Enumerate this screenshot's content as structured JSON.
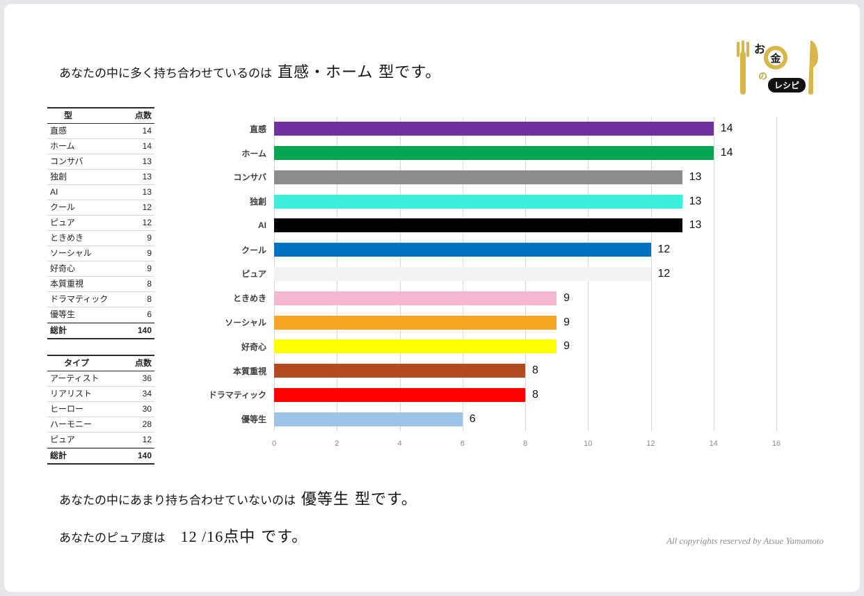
{
  "header": {
    "prefix": "あなたの中に多く持ち合わせているのは",
    "highlight": "直感・ホーム",
    "suffix": "型です。"
  },
  "logo": {
    "char_o": "お",
    "char_kin": "金",
    "char_no": "の",
    "text_recipe": "レシピ",
    "gold": "#d8b64a"
  },
  "tables": [
    {
      "headers": [
        "型",
        "点数"
      ],
      "rows": [
        [
          "直感",
          "14"
        ],
        [
          "ホーム",
          "14"
        ],
        [
          "コンサバ",
          "13"
        ],
        [
          "独創",
          "13"
        ],
        [
          "AI",
          "13"
        ],
        [
          "クール",
          "12"
        ],
        [
          "ピュア",
          "12"
        ],
        [
          "ときめき",
          "9"
        ],
        [
          "ソーシャル",
          "9"
        ],
        [
          "好奇心",
          "9"
        ],
        [
          "本質重視",
          "8"
        ],
        [
          "ドラマティック",
          "8"
        ],
        [
          "優等生",
          "6"
        ]
      ],
      "total_label": "総計",
      "total": "140"
    },
    {
      "headers": [
        "タイプ",
        "点数"
      ],
      "rows": [
        [
          "アーティスト",
          "36"
        ],
        [
          "リアリスト",
          "34"
        ],
        [
          "ヒーロー",
          "30"
        ],
        [
          "ハーモニー",
          "28"
        ],
        [
          "ピュア",
          "12"
        ]
      ],
      "total_label": "総計",
      "total": "140"
    }
  ],
  "chart_data": {
    "type": "bar",
    "orientation": "horizontal",
    "title": "",
    "categories": [
      "直感",
      "ホーム",
      "コンサバ",
      "独創",
      "AI",
      "クール",
      "ピュア",
      "ときめき",
      "ソーシャル",
      "好奇心",
      "本質重視",
      "ドラマティック",
      "優等生"
    ],
    "values": [
      14,
      14,
      13,
      13,
      13,
      12,
      12,
      9,
      9,
      9,
      8,
      8,
      6
    ],
    "colors": [
      "#7030a0",
      "#00a651",
      "#8c8c8c",
      "#3fefde",
      "#000000",
      "#0070c0",
      "#f2f2f2",
      "#f7b6d2",
      "#f5a623",
      "#ffff00",
      "#b5491f",
      "#ff0000",
      "#9dc3e6"
    ],
    "xlim": [
      0,
      16
    ],
    "xticks": [
      0,
      2,
      4,
      6,
      8,
      10,
      12,
      14,
      16
    ],
    "grid": true,
    "legend": false
  },
  "footer": {
    "line1_prefix": "あなたの中にあまり持ち合わせていないのは",
    "line1_highlight": "優等生",
    "line1_suffix": "型です。",
    "line2_prefix": "あなたのピュア度は",
    "line2_value": "12 /16点中",
    "line2_suffix": "です。",
    "copyright": "All copyrights reserved by Atsue  Yamamoto"
  }
}
